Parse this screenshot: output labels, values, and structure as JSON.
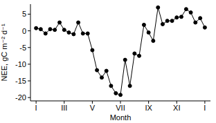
{
  "chart_data": {
    "type": "line",
    "x_label": "Month",
    "y_label": "NEE, gC m⁻² d⁻¹",
    "x": [
      0,
      0.33,
      0.67,
      1,
      1.33,
      1.67,
      2,
      2.33,
      2.67,
      3,
      3.33,
      3.67,
      4,
      4.33,
      4.67,
      5,
      5.33,
      5.67,
      6,
      6.33,
      6.67,
      7,
      7.33,
      7.67,
      8,
      8.33,
      8.67,
      9,
      9.33,
      9.67,
      10,
      10.33,
      10.67,
      11,
      11.33,
      11.67,
      12
    ],
    "values": [
      0.8,
      0.5,
      -0.8,
      0.5,
      0.3,
      2.5,
      0.3,
      -0.5,
      -1,
      2.5,
      -0.8,
      -0.8,
      -5.8,
      -11.8,
      -14,
      -12,
      -16.5,
      -18.7,
      -19.2,
      -8.7,
      -16.5,
      -6.8,
      -7.5,
      1.8,
      -0.5,
      -3,
      7,
      2,
      3,
      3,
      4,
      4.2,
      6.5,
      5.5,
      2.5,
      3.8,
      1
    ],
    "color": "#000000",
    "marker": "circle",
    "line_style": "solid",
    "xlim": [
      -0.4,
      12.4
    ],
    "xticks": [
      {
        "value": 0,
        "label": "I"
      },
      {
        "value": 2,
        "label": "III"
      },
      {
        "value": 4,
        "label": "V"
      },
      {
        "value": 6,
        "label": "VII"
      },
      {
        "value": 8,
        "label": "IX"
      },
      {
        "value": 10,
        "label": "XI"
      },
      {
        "value": 12,
        "label": "I"
      }
    ],
    "ylim": [
      -21,
      8
    ],
    "yticks": [
      -20,
      -15,
      -10,
      -5,
      0,
      5
    ],
    "grid": false
  }
}
